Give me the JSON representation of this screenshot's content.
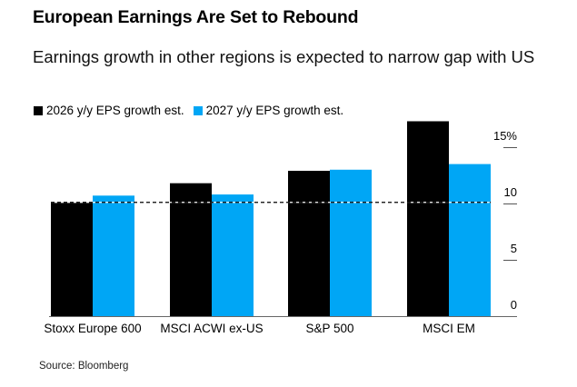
{
  "chart_data": {
    "type": "bar",
    "title": "European Earnings Are Set to Rebound",
    "subtitle": "Earnings growth in other regions is expected to narrow gap with US",
    "categories": [
      "Stoxx Europe 600",
      "MSCI ACWI ex-US",
      "S&P 500",
      "MSCI EM"
    ],
    "series": [
      {
        "name": "2026 y/y EPS growth est.",
        "color": "#000000",
        "values": [
          10.1,
          11.8,
          12.9,
          17.3
        ]
      },
      {
        "name": "2027 y/y EPS growth est.",
        "color": "#00a6f5",
        "values": [
          10.7,
          10.8,
          13.0,
          13.5
        ]
      }
    ],
    "reference_line": {
      "value": 10.1,
      "style": "dashed",
      "color": "#000000"
    },
    "ylim": [
      0,
      17.5
    ],
    "yticks": [
      0,
      5,
      10,
      15
    ],
    "ytick_labels": [
      "0",
      "5",
      "10",
      "15%"
    ],
    "yaxis_position": "right",
    "legend_position": "top-left",
    "grid": false,
    "xlabel": "",
    "ylabel": "",
    "source": "Source: Bloomberg"
  }
}
